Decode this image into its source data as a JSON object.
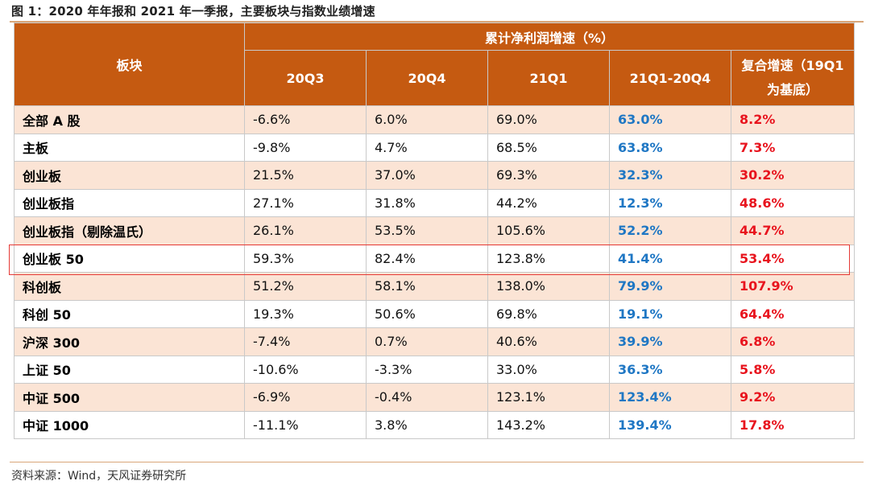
{
  "figure_title": "图 1：2020 年年报和 2021 年一季报，主要板块与指数业绩增速",
  "source": "资料来源：Wind，天风证券研究所",
  "header": {
    "sector": "板块",
    "group": "累计净利润增速（%）",
    "columns": [
      "20Q3",
      "20Q4",
      "21Q1",
      "21Q1-20Q4",
      "复合增速（19Q1为基底）"
    ],
    "compound_line1": "复合增速（19Q1",
    "compound_line2": "为基底）"
  },
  "highlighted_row": "创业板 50",
  "rows": [
    {
      "name": "全部 A 股",
      "q3": "-6.6%",
      "q4": "6.0%",
      "q1": "69.0%",
      "qoq": "63.0%",
      "cagr": "8.2%"
    },
    {
      "name": "主板",
      "q3": "-9.8%",
      "q4": "4.7%",
      "q1": "68.5%",
      "qoq": "63.8%",
      "cagr": "7.3%"
    },
    {
      "name": "创业板",
      "q3": "21.5%",
      "q4": "37.0%",
      "q1": "69.3%",
      "qoq": "32.3%",
      "cagr": "30.2%"
    },
    {
      "name": "创业板指",
      "q3": "27.1%",
      "q4": "31.8%",
      "q1": "44.2%",
      "qoq": "12.3%",
      "cagr": "48.6%"
    },
    {
      "name": "创业板指（剔除温氏）",
      "q3": "26.1%",
      "q4": "53.5%",
      "q1": "105.6%",
      "qoq": "52.2%",
      "cagr": "44.7%"
    },
    {
      "name": "创业板 50",
      "q3": "59.3%",
      "q4": "82.4%",
      "q1": "123.8%",
      "qoq": "41.4%",
      "cagr": "53.4%"
    },
    {
      "name": "科创板",
      "q3": "51.2%",
      "q4": "58.1%",
      "q1": "138.0%",
      "qoq": "79.9%",
      "cagr": "107.9%"
    },
    {
      "name": "科创 50",
      "q3": "19.3%",
      "q4": "50.6%",
      "q1": "69.8%",
      "qoq": "19.1%",
      "cagr": "64.4%"
    },
    {
      "name": "沪深 300",
      "q3": "-7.4%",
      "q4": "0.7%",
      "q1": "40.6%",
      "qoq": "39.9%",
      "cagr": "6.8%"
    },
    {
      "name": "上证 50",
      "q3": "-10.6%",
      "q4": "-3.3%",
      "q1": "33.0%",
      "qoq": "36.3%",
      "cagr": "5.8%"
    },
    {
      "name": "中证 500",
      "q3": "-6.9%",
      "q4": "-0.4%",
      "q1": "123.1%",
      "qoq": "123.4%",
      "cagr": "9.2%"
    },
    {
      "name": "中证 1000",
      "q3": "-11.1%",
      "q4": "3.8%",
      "q1": "143.2%",
      "qoq": "139.4%",
      "cagr": "17.8%"
    }
  ],
  "colors": {
    "header_bg": "#c55a11",
    "row_shade": "#fbe4d5",
    "qoq_text": "#1f77c4",
    "cagr_text": "#e8141e",
    "highlight_border": "#e53935",
    "rule": "#d9a679"
  }
}
